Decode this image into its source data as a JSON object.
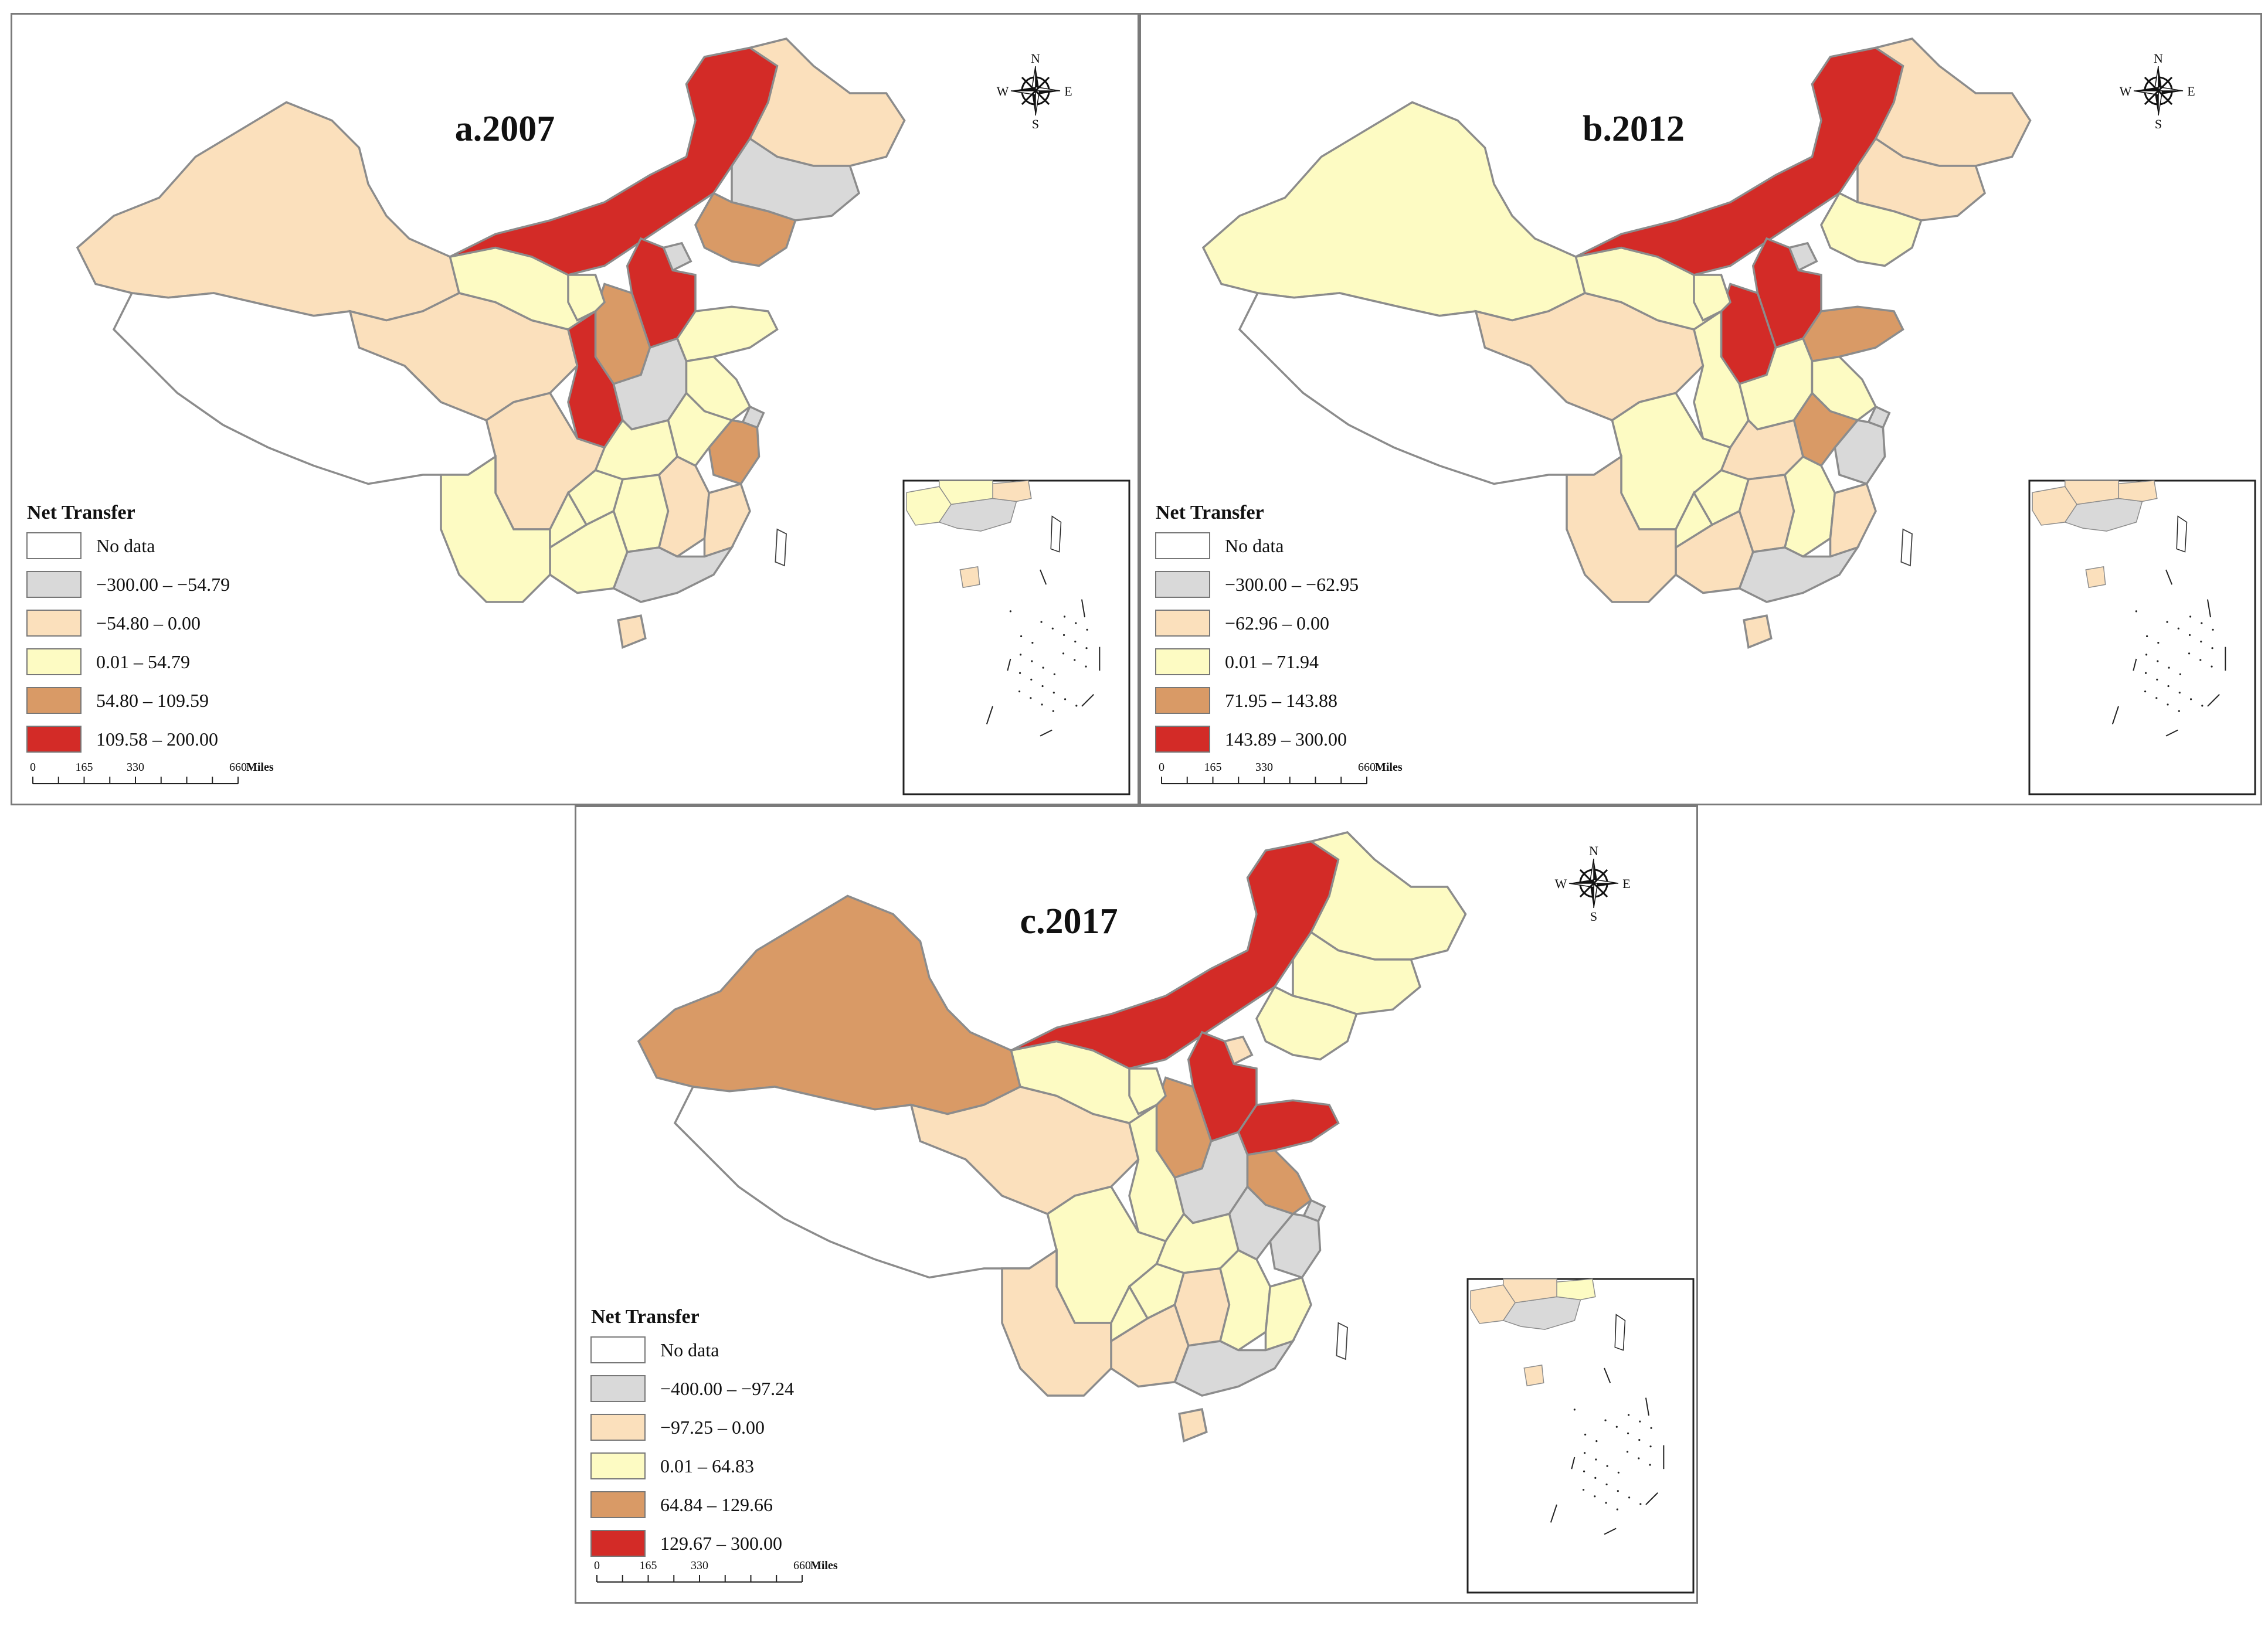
{
  "legend_title": "Net Transfer",
  "scale_bar": {
    "ticks": [
      "0",
      "165",
      "330",
      "660"
    ],
    "unit": "Miles"
  },
  "compass": {
    "n": "N",
    "s": "S",
    "e": "E",
    "w": "W"
  },
  "colors": {
    "no_data": "#ffffff",
    "class1": "#d9d9d9",
    "class2": "#fbe0bc",
    "class3": "#fdfbc3",
    "class4": "#d99a66",
    "class5": "#d32b27",
    "border": "#8c8c8c",
    "sea": "#ffffff"
  },
  "panels": [
    {
      "id": "a",
      "title": "a.2007",
      "legend": [
        "No data",
        "−300.00 – −54.79",
        "−54.80 –  0.00",
        "0.01 – 54.79",
        "54.80 – 109.59",
        "109.58 – 200.00"
      ],
      "regions": {
        "xinjiang": "class2",
        "tibet": "class0",
        "qinghai": "class2",
        "gansu": "class3",
        "inner_mongolia": "class5",
        "heilongjiang": "class2",
        "jilin": "class1",
        "liaoning": "class4",
        "beijing": "class1",
        "hebei": "class5",
        "shanxi": "class4",
        "shaanxi": "class5",
        "ningxia": "class3",
        "shandong": "class3",
        "henan": "class1",
        "jiangsu": "class3",
        "shanghai": "class1",
        "zhejiang": "class4",
        "anhui": "class3",
        "hubei": "class3",
        "sichuan": "class2",
        "chongqing": "class3",
        "hunan": "class3",
        "jiangxi": "class2",
        "fujian": "class2",
        "guangdong": "class1",
        "guangxi": "class3",
        "yunnan": "class3",
        "guizhou": "class3",
        "hainan": "class2"
      }
    },
    {
      "id": "b",
      "title": "b.2012",
      "legend": [
        "No data",
        "−300.00 – −62.95",
        "−62.96 – 0.00",
        "0.01 – 71.94",
        "71.95 – 143.88",
        "143.89 – 300.00"
      ],
      "regions": {
        "xinjiang": "class3",
        "tibet": "class0",
        "qinghai": "class2",
        "gansu": "class3",
        "inner_mongolia": "class5",
        "heilongjiang": "class2",
        "jilin": "class2",
        "liaoning": "class3",
        "beijing": "class1",
        "hebei": "class5",
        "shanxi": "class5",
        "shaanxi": "class3",
        "ningxia": "class3",
        "shandong": "class4",
        "henan": "class3",
        "jiangsu": "class3",
        "shanghai": "class1",
        "zhejiang": "class1",
        "anhui": "class4",
        "hubei": "class2",
        "sichuan": "class3",
        "chongqing": "class3",
        "hunan": "class2",
        "jiangxi": "class3",
        "fujian": "class2",
        "guangdong": "class1",
        "guangxi": "class2",
        "yunnan": "class2",
        "guizhou": "class3",
        "hainan": "class2"
      }
    },
    {
      "id": "c",
      "title": "c.2017",
      "legend": [
        "No data",
        "−400.00 – −97.24",
        "−97.25 – 0.00",
        "0.01 – 64.83",
        "64.84 – 129.66",
        "129.67 – 300.00"
      ],
      "regions": {
        "xinjiang": "class4",
        "tibet": "class0",
        "qinghai": "class2",
        "gansu": "class3",
        "inner_mongolia": "class5",
        "heilongjiang": "class3",
        "jilin": "class3",
        "liaoning": "class3",
        "beijing": "class2",
        "hebei": "class5",
        "shanxi": "class4",
        "shaanxi": "class3",
        "ningxia": "class3",
        "shandong": "class5",
        "henan": "class1",
        "jiangsu": "class4",
        "shanghai": "class1",
        "zhejiang": "class1",
        "anhui": "class1",
        "hubei": "class3",
        "sichuan": "class3",
        "chongqing": "class3",
        "hunan": "class2",
        "jiangxi": "class3",
        "fujian": "class3",
        "guangdong": "class1",
        "guangxi": "class2",
        "yunnan": "class2",
        "guizhou": "class3",
        "hainan": "class2"
      }
    }
  ]
}
